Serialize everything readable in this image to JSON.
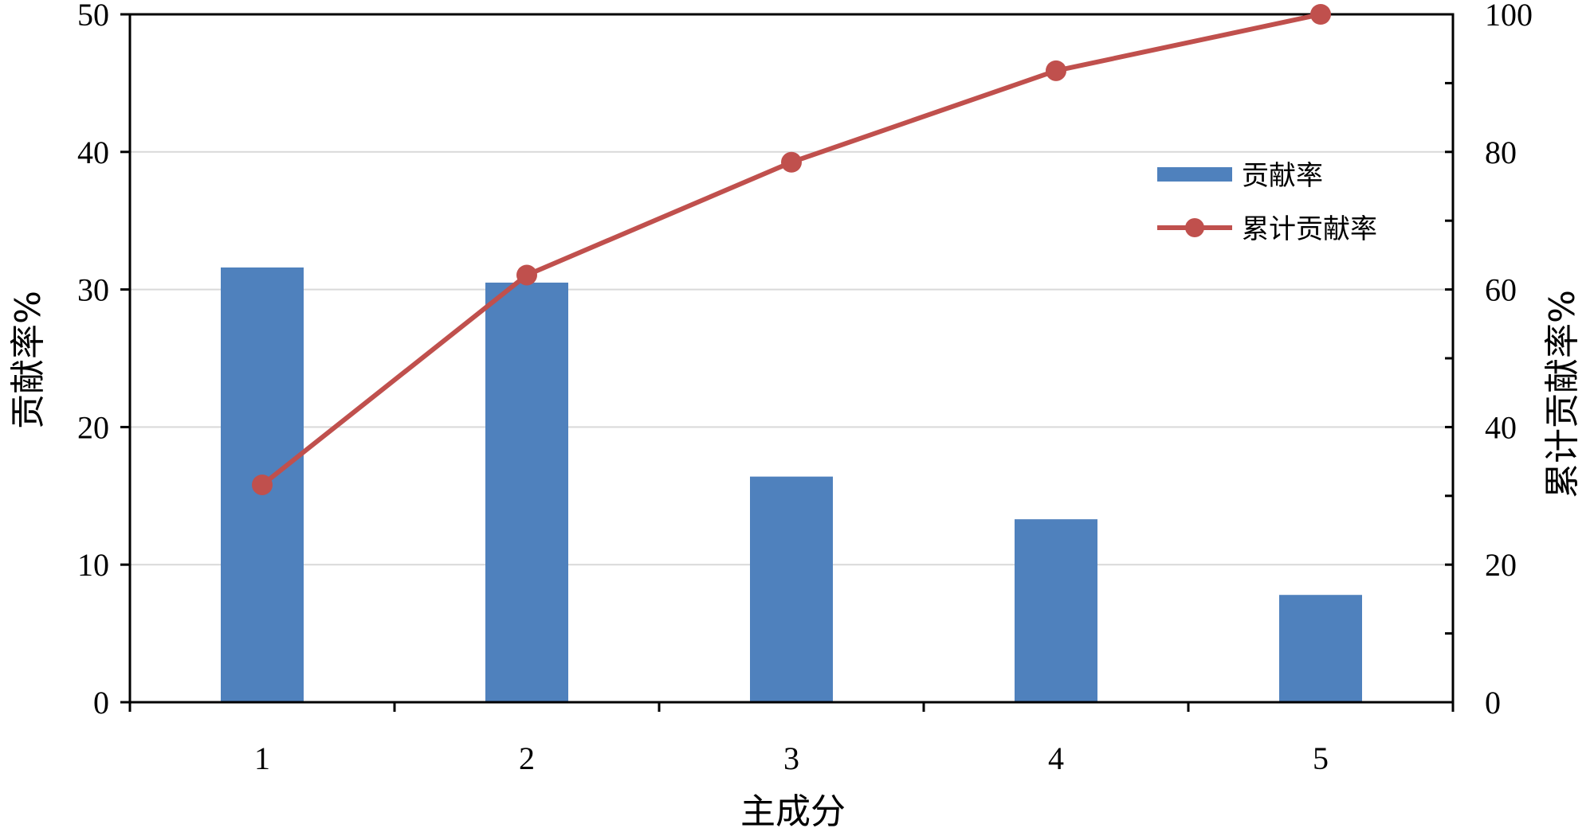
{
  "chart_data": {
    "type": "bar",
    "categories": [
      "1",
      "2",
      "3",
      "4",
      "5"
    ],
    "x_tick_labels": [
      "1",
      "2",
      "3",
      "4",
      "5"
    ],
    "xlabel": "主成分",
    "ylabel_left": "贡献率%",
    "ylabel_right": "累计贡献率%",
    "ylim_left": [
      0,
      50
    ],
    "ylim_right": [
      0,
      100
    ],
    "y_left_ticks": [
      "0",
      "10",
      "20",
      "30",
      "40",
      "50"
    ],
    "y_right_ticks": [
      "0",
      "20",
      "40",
      "60",
      "80",
      "100"
    ],
    "grid": true,
    "legend_position": "upper-right",
    "series": [
      {
        "name": "贡献率",
        "type": "bar",
        "axis": "left",
        "color": "#4F81BD",
        "values": [
          31.6,
          30.5,
          16.4,
          13.3,
          7.8
        ]
      },
      {
        "name": "累计贡献率",
        "type": "line",
        "axis": "right",
        "color": "#C0504D",
        "values": [
          31.6,
          62.1,
          78.5,
          91.8,
          100
        ]
      }
    ]
  }
}
